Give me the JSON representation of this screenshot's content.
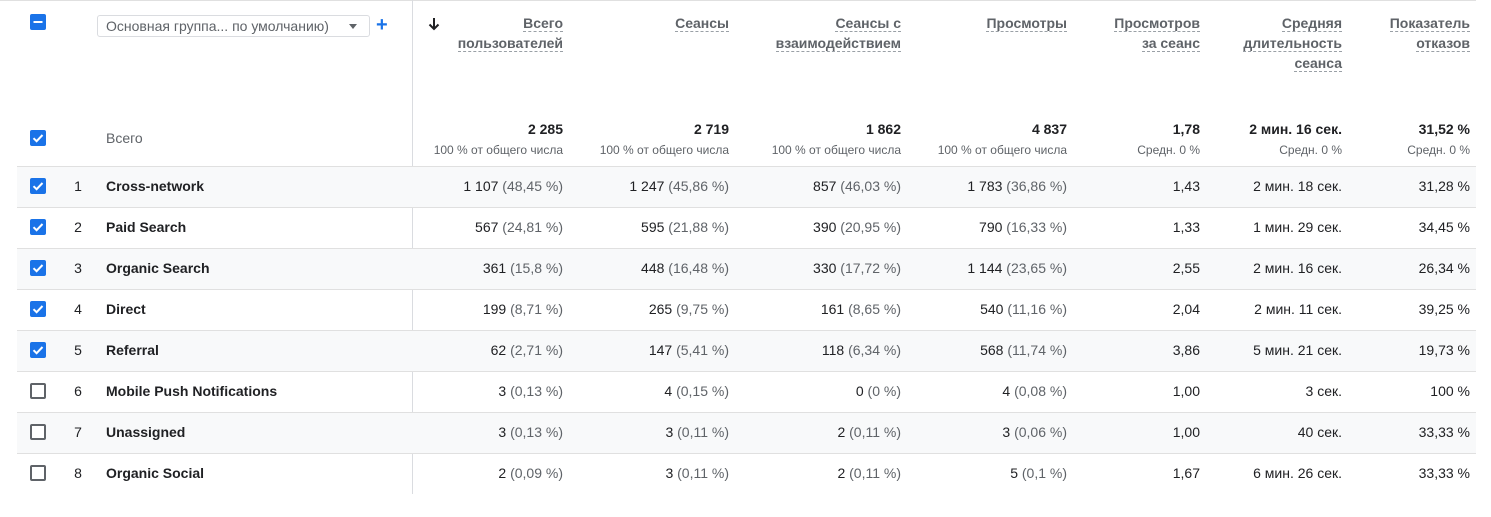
{
  "header": {
    "dimension_dropdown": "Основная группа... по умолчанию)",
    "add_label": "+",
    "total_label": "Всего",
    "columns": [
      {
        "l1": "Всего",
        "l2": "пользователей",
        "l3": ""
      },
      {
        "l1": "Сеансы",
        "l2": "",
        "l3": ""
      },
      {
        "l1": "Сеансы с",
        "l2": "взаимодействием",
        "l3": ""
      },
      {
        "l1": "Просмотры",
        "l2": "",
        "l3": ""
      },
      {
        "l1": "Просмотров",
        "l2": "за сеанс",
        "l3": ""
      },
      {
        "l1": "Средняя",
        "l2": "длительность",
        "l3": "сеанса"
      },
      {
        "l1": "Показатель",
        "l2": "отказов",
        "l3": ""
      }
    ]
  },
  "totals": [
    {
      "value": "2 285",
      "sub": "100 % от общего числа"
    },
    {
      "value": "2 719",
      "sub": "100 % от общего числа"
    },
    {
      "value": "1 862",
      "sub": "100 % от общего числа"
    },
    {
      "value": "4 837",
      "sub": "100 % от общего числа"
    },
    {
      "value": "1,78",
      "sub": "Средн. 0 %"
    },
    {
      "value": "2 мин. 16 сек.",
      "sub": "Средн. 0 %"
    },
    {
      "value": "31,52 %",
      "sub": "Средн. 0 %"
    }
  ],
  "rows": [
    {
      "num": "1",
      "name": "Cross-network",
      "checked": true,
      "cells": [
        [
          "1 107",
          "(48,45 %)"
        ],
        [
          "1 247",
          "(45,86 %)"
        ],
        [
          "857",
          "(46,03 %)"
        ],
        [
          "1 783",
          "(36,86 %)"
        ],
        [
          "1,43",
          ""
        ],
        [
          "2 мин. 18 сек.",
          ""
        ],
        [
          "31,28 %",
          ""
        ]
      ]
    },
    {
      "num": "2",
      "name": "Paid Search",
      "checked": true,
      "cells": [
        [
          "567",
          "(24,81 %)"
        ],
        [
          "595",
          "(21,88 %)"
        ],
        [
          "390",
          "(20,95 %)"
        ],
        [
          "790",
          "(16,33 %)"
        ],
        [
          "1,33",
          ""
        ],
        [
          "1 мин. 29 сек.",
          ""
        ],
        [
          "34,45 %",
          ""
        ]
      ]
    },
    {
      "num": "3",
      "name": "Organic Search",
      "checked": true,
      "cells": [
        [
          "361",
          "(15,8 %)"
        ],
        [
          "448",
          "(16,48 %)"
        ],
        [
          "330",
          "(17,72 %)"
        ],
        [
          "1 144",
          "(23,65 %)"
        ],
        [
          "2,55",
          ""
        ],
        [
          "2 мин. 16 сек.",
          ""
        ],
        [
          "26,34 %",
          ""
        ]
      ]
    },
    {
      "num": "4",
      "name": "Direct",
      "checked": true,
      "cells": [
        [
          "199",
          "(8,71 %)"
        ],
        [
          "265",
          "(9,75 %)"
        ],
        [
          "161",
          "(8,65 %)"
        ],
        [
          "540",
          "(11,16 %)"
        ],
        [
          "2,04",
          ""
        ],
        [
          "2 мин. 11 сек.",
          ""
        ],
        [
          "39,25 %",
          ""
        ]
      ]
    },
    {
      "num": "5",
      "name": "Referral",
      "checked": true,
      "cells": [
        [
          "62",
          "(2,71 %)"
        ],
        [
          "147",
          "(5,41 %)"
        ],
        [
          "118",
          "(6,34 %)"
        ],
        [
          "568",
          "(11,74 %)"
        ],
        [
          "3,86",
          ""
        ],
        [
          "5 мин. 21 сек.",
          ""
        ],
        [
          "19,73 %",
          ""
        ]
      ]
    },
    {
      "num": "6",
      "name": "Mobile Push Notifications",
      "checked": false,
      "cells": [
        [
          "3",
          "(0,13 %)"
        ],
        [
          "4",
          "(0,15 %)"
        ],
        [
          "0",
          "(0 %)"
        ],
        [
          "4",
          "(0,08 %)"
        ],
        [
          "1,00",
          ""
        ],
        [
          "3 сек.",
          ""
        ],
        [
          "100 %",
          ""
        ]
      ]
    },
    {
      "num": "7",
      "name": "Unassigned",
      "checked": false,
      "cells": [
        [
          "3",
          "(0,13 %)"
        ],
        [
          "3",
          "(0,11 %)"
        ],
        [
          "2",
          "(0,11 %)"
        ],
        [
          "3",
          "(0,06 %)"
        ],
        [
          "1,00",
          ""
        ],
        [
          "40 сек.",
          ""
        ],
        [
          "33,33 %",
          ""
        ]
      ]
    },
    {
      "num": "8",
      "name": "Organic Social",
      "checked": false,
      "cells": [
        [
          "2",
          "(0,09 %)"
        ],
        [
          "3",
          "(0,11 %)"
        ],
        [
          "2",
          "(0,11 %)"
        ],
        [
          "5",
          "(0,1 %)"
        ],
        [
          "1,67",
          ""
        ],
        [
          "6 мин. 26 сек.",
          ""
        ],
        [
          "33,33 %",
          ""
        ]
      ]
    }
  ],
  "colors": {
    "accent": "#1a73e8",
    "text": "#202124",
    "muted": "#5f6368"
  }
}
